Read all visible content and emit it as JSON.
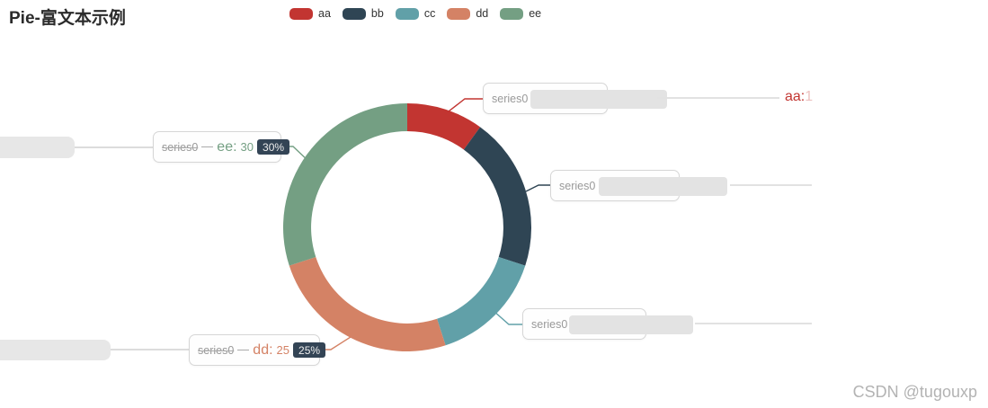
{
  "title": "Pie-富文本示例",
  "watermark": "CSDN @tugouxp",
  "series_name": "series0",
  "accent": {
    "badge_bg": "#334455",
    "badge_fg": "#eeeeee",
    "label_border": "#d6d6d6",
    "block_gray": "#e3e3e3",
    "line_gray": "#e2e2e2",
    "series_text": "#999999"
  },
  "chart_data": {
    "type": "pie",
    "subtype": "donut",
    "title": "Pie-富文本示例",
    "series_name": "series0",
    "categories": [
      "aa",
      "bb",
      "cc",
      "dd",
      "ee"
    ],
    "values": [
      10,
      20,
      15,
      25,
      30
    ],
    "percents": [
      "10%",
      "20%",
      "15%",
      "25%",
      "30%"
    ],
    "colors": [
      "#c23531",
      "#2f4554",
      "#61a0a8",
      "#d48265",
      "#749f83"
    ],
    "start_angle_deg": 0,
    "clockwise": true,
    "inner_radius_ratio": 0.775,
    "legend_position": "top-center",
    "legend_entries": [
      "aa",
      "bb",
      "cc",
      "dd",
      "ee"
    ]
  },
  "labels": {
    "aa": {
      "series": "series0",
      "tail": "aa:",
      "tail_faint": "1"
    },
    "bb": {
      "series": "series0"
    },
    "cc": {
      "series": "series0"
    },
    "dd": {
      "series": "series0",
      "name": "dd:",
      "value": "25",
      "percent": "25%"
    },
    "ee": {
      "series": "series0",
      "name": "ee:",
      "value": "30",
      "percent": "30%"
    }
  }
}
